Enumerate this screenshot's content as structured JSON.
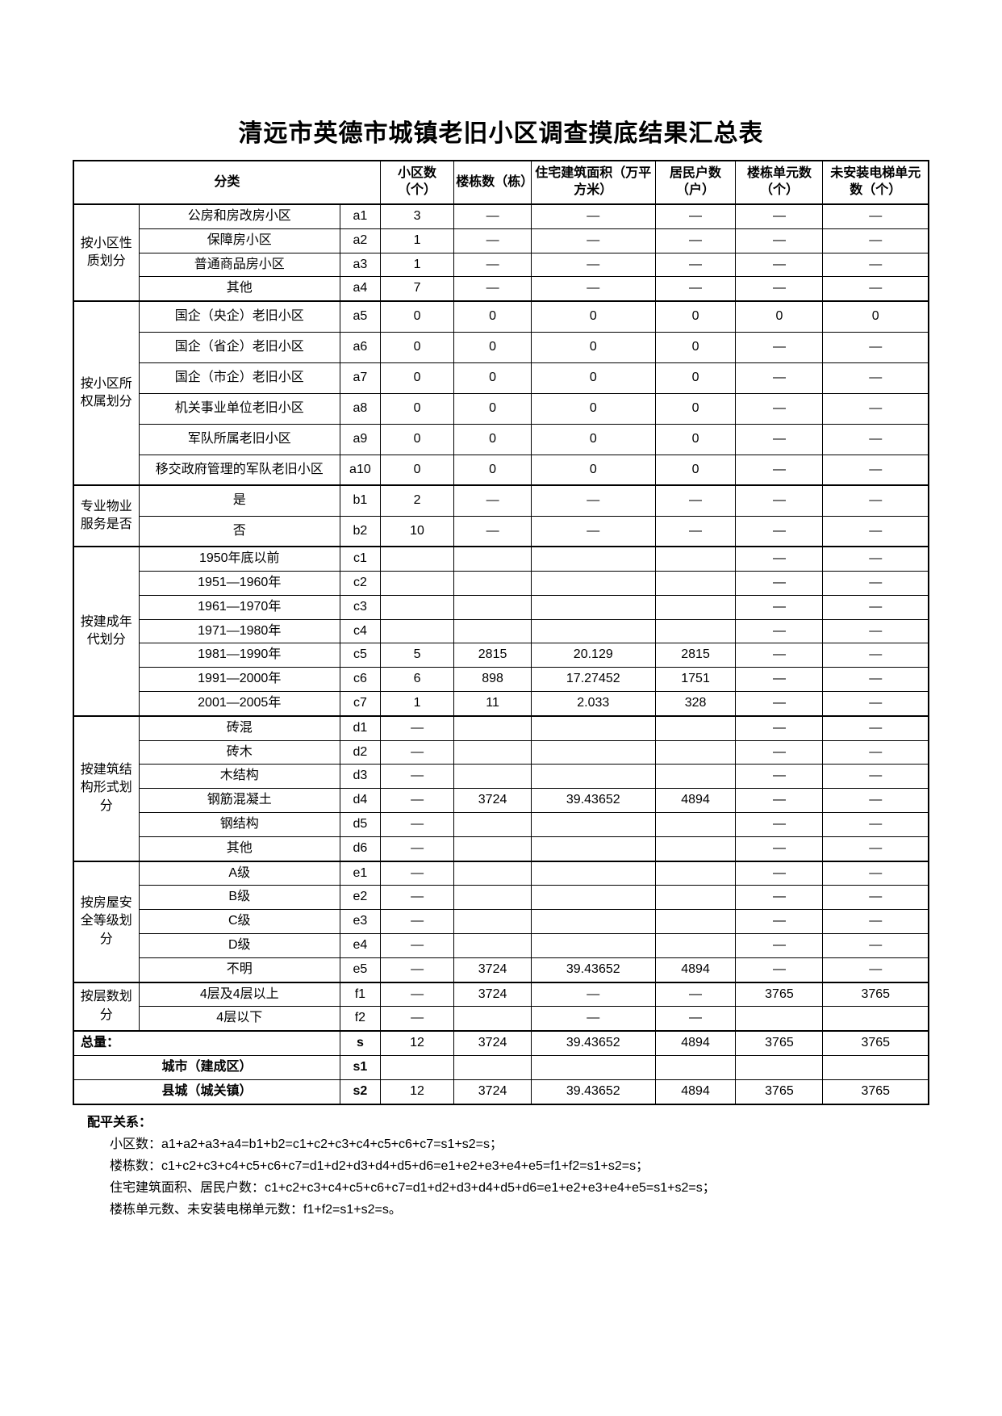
{
  "title": "清远市英德市城镇老旧小区调查摸底结果汇总表",
  "columns": {
    "category": "分类",
    "c1": "小区数（个）",
    "c2": "楼栋数（栋）",
    "c3": "住宅建筑面积（万平方米）",
    "c4": "居民户数（户）",
    "c5": "楼栋单元数（个）",
    "c6": "未安装电梯单元数（个）"
  },
  "groups": {
    "g1": "按小区性质划分",
    "g2": "按小区所权属划分",
    "g3": "专业物业服务是否",
    "g4": "按建成年代划分",
    "g5": "按建筑结构形式划分",
    "g6": "按房屋安全等级划分",
    "g7": "按层数划分"
  },
  "rows": {
    "a1": {
      "label": "公房和房改房小区",
      "code": "a1",
      "v": [
        "3",
        "—",
        "—",
        "—",
        "—",
        "—"
      ]
    },
    "a2": {
      "label": "保障房小区",
      "code": "a2",
      "v": [
        "1",
        "—",
        "—",
        "—",
        "—",
        "—"
      ]
    },
    "a3": {
      "label": "普通商品房小区",
      "code": "a3",
      "v": [
        "1",
        "—",
        "—",
        "—",
        "—",
        "—"
      ]
    },
    "a4": {
      "label": "其他",
      "code": "a4",
      "v": [
        "7",
        "—",
        "—",
        "—",
        "—",
        "—"
      ]
    },
    "a5": {
      "label": "国企（央企）老旧小区",
      "code": "a5",
      "v": [
        "0",
        "0",
        "0",
        "0",
        "0",
        "0"
      ]
    },
    "a6": {
      "label": "国企（省企）老旧小区",
      "code": "a6",
      "v": [
        "0",
        "0",
        "0",
        "0",
        "—",
        "—"
      ]
    },
    "a7": {
      "label": "国企（市企）老旧小区",
      "code": "a7",
      "v": [
        "0",
        "0",
        "0",
        "0",
        "—",
        "—"
      ]
    },
    "a8": {
      "label": "机关事业单位老旧小区",
      "code": "a8",
      "v": [
        "0",
        "0",
        "0",
        "0",
        "—",
        "—"
      ]
    },
    "a9": {
      "label": "军队所属老旧小区",
      "code": "a9",
      "v": [
        "0",
        "0",
        "0",
        "0",
        "—",
        "—"
      ]
    },
    "a10": {
      "label": "移交政府管理的军队老旧小区",
      "code": "a10",
      "v": [
        "0",
        "0",
        "0",
        "0",
        "—",
        "—"
      ]
    },
    "b1": {
      "label": "是",
      "code": "b1",
      "v": [
        "2",
        "—",
        "—",
        "—",
        "—",
        "—"
      ]
    },
    "b2": {
      "label": "否",
      "code": "b2",
      "v": [
        "10",
        "—",
        "—",
        "—",
        "—",
        "—"
      ]
    },
    "c1": {
      "label": "1950年底以前",
      "code": "c1",
      "v": [
        "",
        "",
        "",
        "",
        "—",
        "—"
      ]
    },
    "c2": {
      "label": "1951—1960年",
      "code": "c2",
      "v": [
        "",
        "",
        "",
        "",
        "—",
        "—"
      ]
    },
    "c3": {
      "label": "1961—1970年",
      "code": "c3",
      "v": [
        "",
        "",
        "",
        "",
        "—",
        "—"
      ]
    },
    "c4": {
      "label": "1971—1980年",
      "code": "c4",
      "v": [
        "",
        "",
        "",
        "",
        "—",
        "—"
      ]
    },
    "c5": {
      "label": "1981—1990年",
      "code": "c5",
      "v": [
        "5",
        "2815",
        "20.129",
        "2815",
        "—",
        "—"
      ]
    },
    "c6": {
      "label": "1991—2000年",
      "code": "c6",
      "v": [
        "6",
        "898",
        "17.27452",
        "1751",
        "—",
        "—"
      ]
    },
    "c7": {
      "label": "2001—2005年",
      "code": "c7",
      "v": [
        "1",
        "11",
        "2.033",
        "328",
        "—",
        "—"
      ]
    },
    "d1": {
      "label": "砖混",
      "code": "d1",
      "v": [
        "—",
        "",
        "",
        "",
        "—",
        "—"
      ]
    },
    "d2": {
      "label": "砖木",
      "code": "d2",
      "v": [
        "—",
        "",
        "",
        "",
        "—",
        "—"
      ]
    },
    "d3": {
      "label": "木结构",
      "code": "d3",
      "v": [
        "—",
        "",
        "",
        "",
        "—",
        "—"
      ]
    },
    "d4": {
      "label": "钢筋混凝土",
      "code": "d4",
      "v": [
        "—",
        "3724",
        "39.43652",
        "4894",
        "—",
        "—"
      ]
    },
    "d5": {
      "label": "钢结构",
      "code": "d5",
      "v": [
        "—",
        "",
        "",
        "",
        "—",
        "—"
      ]
    },
    "d6": {
      "label": "其他",
      "code": "d6",
      "v": [
        "—",
        "",
        "",
        "",
        "—",
        "—"
      ]
    },
    "e1": {
      "label": "A级",
      "code": "e1",
      "v": [
        "—",
        "",
        "",
        "",
        "—",
        "—"
      ]
    },
    "e2": {
      "label": "B级",
      "code": "e2",
      "v": [
        "—",
        "",
        "",
        "",
        "—",
        "—"
      ]
    },
    "e3": {
      "label": "C级",
      "code": "e3",
      "v": [
        "—",
        "",
        "",
        "",
        "—",
        "—"
      ]
    },
    "e4": {
      "label": "D级",
      "code": "e4",
      "v": [
        "—",
        "",
        "",
        "",
        "—",
        "—"
      ]
    },
    "e5": {
      "label": "不明",
      "code": "e5",
      "v": [
        "—",
        "3724",
        "39.43652",
        "4894",
        "—",
        "—"
      ]
    },
    "f1": {
      "label": "4层及4层以上",
      "code": "f1",
      "v": [
        "—",
        "3724",
        "—",
        "—",
        "3765",
        "3765"
      ]
    },
    "f2": {
      "label": "4层以下",
      "code": "f2",
      "v": [
        "—",
        "",
        "—",
        "—",
        "",
        ""
      ]
    },
    "s": {
      "label": "总量：",
      "code": "s",
      "v": [
        "12",
        "3724",
        "39.43652",
        "4894",
        "3765",
        "3765"
      ]
    },
    "s1": {
      "label": "城市（建成区）",
      "code": "s1",
      "v": [
        "",
        "",
        "",
        "",
        "",
        ""
      ]
    },
    "s2": {
      "label": "县城（城关镇）",
      "code": "s2",
      "v": [
        "12",
        "3724",
        "39.43652",
        "4894",
        "3765",
        "3765"
      ]
    }
  },
  "notes": {
    "title": "配平关系：",
    "lines": [
      "小区数：a1+a2+a3+a4=b1+b2=c1+c2+c3+c4+c5+c6+c7=s1+s2=s；",
      "楼栋数：c1+c2+c3+c4+c5+c6+c7=d1+d2+d3+d4+d5+d6=e1+e2+e3+e4+e5=f1+f2=s1+s2=s；",
      "住宅建筑面积、居民户数：c1+c2+c3+c4+c5+c6+c7=d1+d2+d3+d4+d5+d6=e1+e2+e3+e4+e5=s1+s2=s；",
      "楼栋单元数、未安装电梯单元数：f1+f2=s1+s2=s。"
    ]
  },
  "style": {
    "page_bg": "#ffffff",
    "border_color": "#000000",
    "title_fontsize": 30,
    "cell_fontsize": 16
  }
}
